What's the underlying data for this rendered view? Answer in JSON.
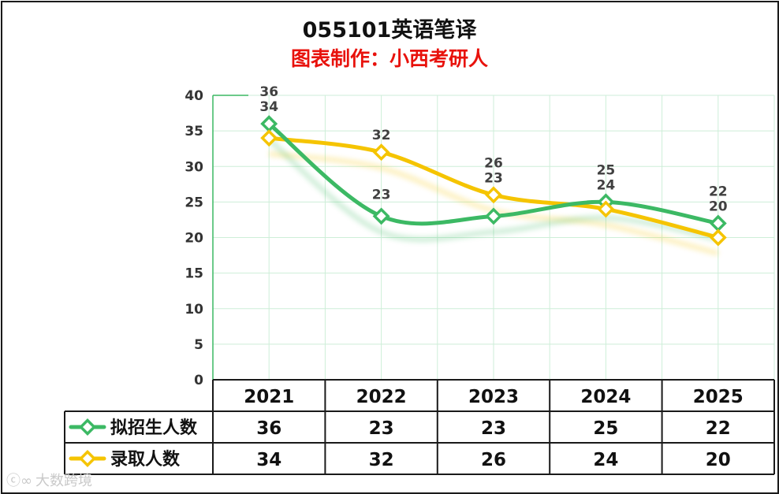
{
  "chart_data": {
    "type": "line",
    "title": "055101英语笔译",
    "subtitle": "图表制作：小西考研人",
    "categories": [
      "2021",
      "2022",
      "2023",
      "2024",
      "2025"
    ],
    "ylim": [
      0,
      40
    ],
    "yticks": [
      0,
      5,
      10,
      15,
      20,
      25,
      30,
      35,
      40
    ],
    "grid": true,
    "series": [
      {
        "name": "拟招生人数",
        "values": [
          36,
          23,
          23,
          25,
          22
        ],
        "color": "#3cb964"
      },
      {
        "name": "录取人数",
        "values": [
          34,
          32,
          26,
          24,
          20
        ],
        "color": "#f5c400"
      }
    ]
  },
  "watermark": {
    "text": "大数跨境"
  }
}
